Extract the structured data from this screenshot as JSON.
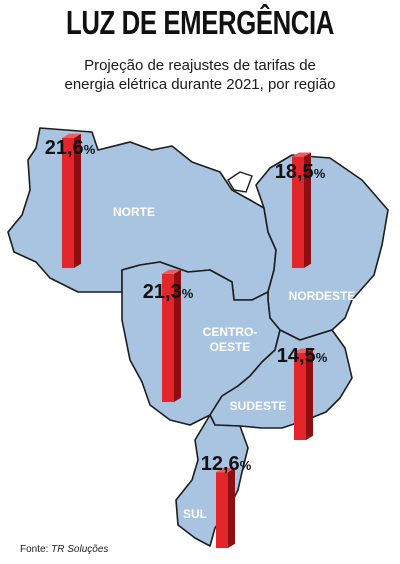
{
  "title": "LUZ DE EMERGÊNCIA",
  "subtitle_line1": "Projeção de reajustes de tarifas de",
  "subtitle_line2": "energia elétrica durante 2021, por região",
  "source_label": "Fonte:",
  "source_name": "TR Soluções",
  "colors": {
    "map_fill": "#a9c4e1",
    "map_stroke": "#1d1d1d",
    "bar_front": "#e3262b",
    "bar_side": "#8e0f12",
    "bar_top": "#f25a5e",
    "region_label": "#ffffff"
  },
  "chart_data": {
    "type": "bar",
    "categories": [
      "NORTE",
      "NORDESTE",
      "CENTRO-OESTE",
      "SUDESTE",
      "SUL"
    ],
    "values": [
      21.6,
      18.5,
      21.3,
      14.5,
      12.6
    ],
    "value_labels": [
      "21,6",
      "18,5",
      "21,3",
      "14,5",
      "12,6"
    ],
    "unit": "%",
    "region_labels": [
      [
        "NORTE"
      ],
      [
        "NORDESTE"
      ],
      [
        "CENTRO-",
        "OESTE"
      ],
      [
        "SUDESTE"
      ],
      [
        "SUL"
      ]
    ]
  }
}
